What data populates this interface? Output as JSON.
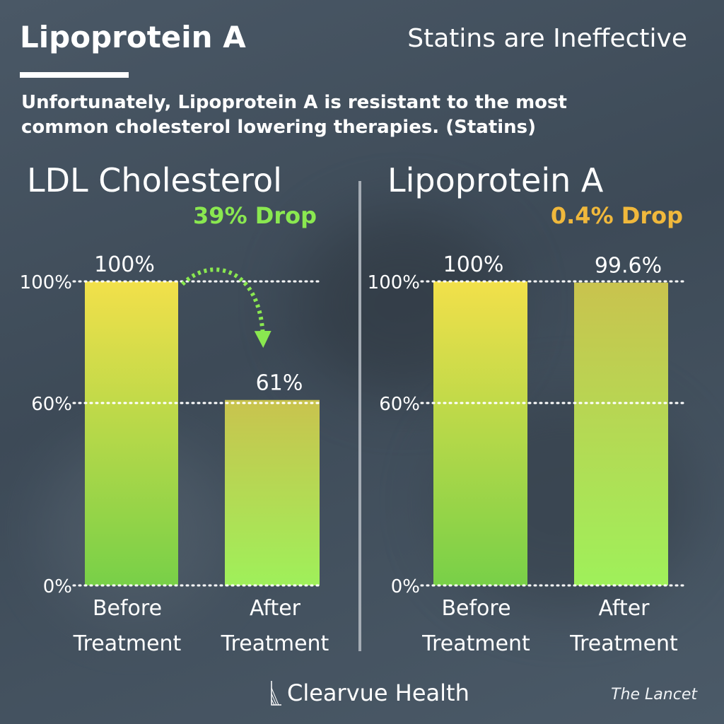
{
  "header": {
    "title": "Lipoprotein A",
    "subtitle": "Statins are Ineffective",
    "intro": "Unfortunately, Lipoprotein A is resistant to the most common cholesterol lowering therapies. (Statins)"
  },
  "colors": {
    "bar_top": "#f2e04a",
    "bar_bottom": "#7ad64a",
    "bar_after_top": "#c9c34e",
    "bar_after_bottom": "#9ff05a",
    "drop_green": "#8ae850",
    "drop_yellow": "#f0b83c"
  },
  "chart_data": [
    {
      "type": "bar",
      "title": "LDL Cholesterol",
      "annotation": "39% Drop",
      "categories": [
        "Before Treatment",
        "After Treatment"
      ],
      "category_lines": [
        [
          "Before",
          "Treatment"
        ],
        [
          "After",
          "Treatment"
        ]
      ],
      "values": [
        100,
        61
      ],
      "data_labels": [
        "100%",
        "61%"
      ],
      "ylim": [
        0,
        100
      ],
      "y_ticks": [
        0,
        60,
        100
      ],
      "y_tick_labels": [
        "0%",
        "60%",
        "100%"
      ],
      "grid": true
    },
    {
      "type": "bar",
      "title": "Lipoprotein A",
      "annotation": "0.4% Drop",
      "categories": [
        "Before Treatment",
        "After Treatment"
      ],
      "category_lines": [
        [
          "Before",
          "Treatment"
        ],
        [
          "After",
          "Treatment"
        ]
      ],
      "values": [
        100,
        99.6
      ],
      "data_labels": [
        "100%",
        "99.6%"
      ],
      "ylim": [
        0,
        100
      ],
      "y_ticks": [
        0,
        60,
        100
      ],
      "y_tick_labels": [
        "0%",
        "60%",
        "100%"
      ],
      "grid": true
    }
  ],
  "footer": {
    "brand": "Clearvue Health",
    "source": "The Lancet",
    "brand_logo_icon": "triangle-lines-logo-icon"
  }
}
